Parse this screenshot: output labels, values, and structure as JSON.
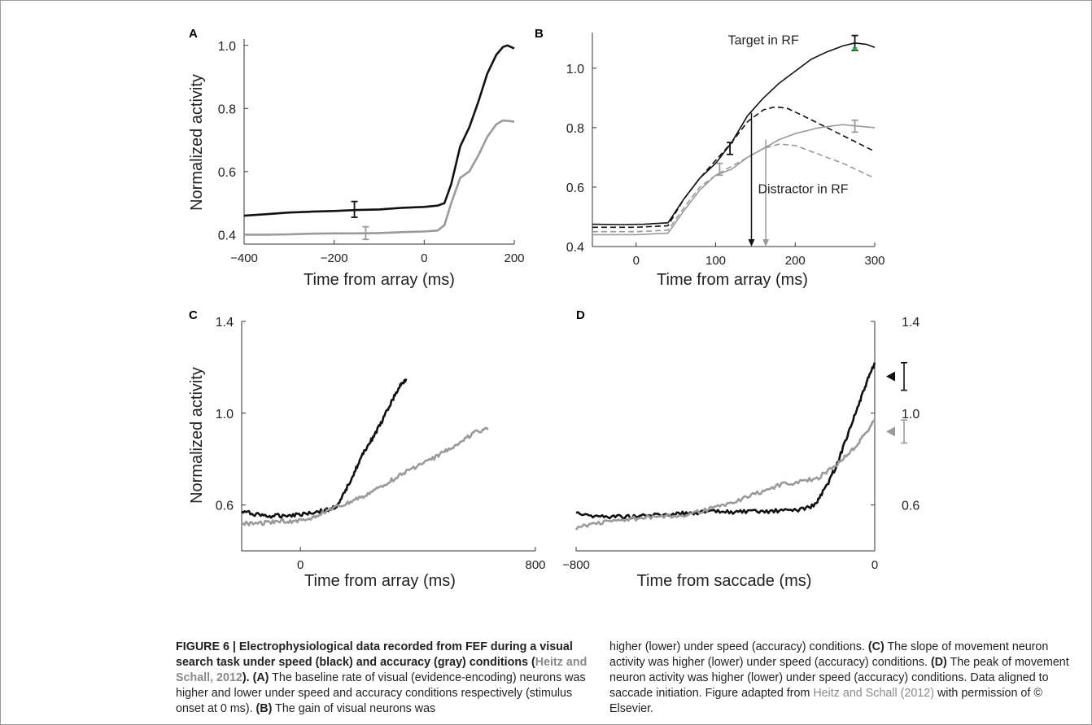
{
  "figure": {
    "caption_left": [
      {
        "text": "FIGURE 6 | Electrophysiological data recorded from FEF during a visual search task under speed (black) and accuracy (gray) conditions (",
        "style": "bold"
      },
      {
        "text": "Heitz and Schall, 2012",
        "style": "bold-ref"
      },
      {
        "text": "). ",
        "style": "bold"
      },
      {
        "text": "(A)",
        "style": "bold"
      },
      {
        "text": " The baseline rate of visual (evidence-encoding) neurons was higher and lower under speed and accuracy conditions respectively (stimulus onset at 0 ms). ",
        "style": "normal"
      },
      {
        "text": "(B)",
        "style": "bold"
      },
      {
        "text": " The gain of visual neurons was",
        "style": "normal"
      }
    ],
    "caption_right": [
      {
        "text": "higher (lower) under speed (accuracy) conditions. ",
        "style": "normal"
      },
      {
        "text": "(C)",
        "style": "bold"
      },
      {
        "text": " The slope of movement neuron activity was higher (lower) under speed (accuracy) conditions. ",
        "style": "normal"
      },
      {
        "text": "(D)",
        "style": "bold"
      },
      {
        "text": " The peak of movement neuron activity was higher (lower) under speed (accuracy) conditions. Data aligned to saccade initiation. Figure adapted from ",
        "style": "normal"
      },
      {
        "text": "Heitz and Schall (2012)",
        "style": "ref"
      },
      {
        "text": " with permission of © Elsevier.",
        "style": "normal"
      }
    ]
  },
  "colors": {
    "speed": "#111111",
    "accuracy": "#9a9a9a",
    "marker_green": "#2aa84a"
  },
  "chart_data": [
    {
      "panel": "A",
      "type": "line",
      "xlabel": "Time from array (ms)",
      "ylabel": "Normalized activity",
      "xlim": [
        -400,
        200
      ],
      "ylim": [
        0.37,
        1.02
      ],
      "xticks": [
        -400,
        -200,
        0,
        200
      ],
      "yticks": [
        0.4,
        0.6,
        0.8,
        1.0
      ],
      "series": [
        {
          "color": "#111111",
          "dashed": false,
          "x": [
            -400,
            -350,
            -300,
            -250,
            -200,
            -150,
            -100,
            -50,
            0,
            30,
            45,
            60,
            80,
            100,
            120,
            140,
            160,
            175,
            185,
            200
          ],
          "y": [
            0.46,
            0.465,
            0.47,
            0.473,
            0.475,
            0.478,
            0.48,
            0.485,
            0.488,
            0.492,
            0.5,
            0.56,
            0.68,
            0.74,
            0.82,
            0.91,
            0.97,
            0.995,
            1.0,
            0.99
          ]
        },
        {
          "color": "#9a9a9a",
          "dashed": false,
          "x": [
            -400,
            -350,
            -300,
            -250,
            -200,
            -150,
            -100,
            -50,
            0,
            30,
            45,
            60,
            80,
            100,
            120,
            140,
            160,
            175,
            190,
            200
          ],
          "y": [
            0.4,
            0.4,
            0.401,
            0.403,
            0.404,
            0.404,
            0.405,
            0.408,
            0.41,
            0.413,
            0.43,
            0.5,
            0.58,
            0.6,
            0.65,
            0.71,
            0.75,
            0.762,
            0.76,
            0.758
          ]
        }
      ],
      "error_bars": [
        {
          "x": -155,
          "y": 0.48,
          "err": 0.025,
          "color": "#111111"
        },
        {
          "x": -130,
          "y": 0.405,
          "err": 0.02,
          "color": "#9a9a9a"
        }
      ]
    },
    {
      "panel": "B",
      "type": "line",
      "xlabel": "Time from array (ms)",
      "ylabel": "",
      "xlim": [
        -55,
        300
      ],
      "ylim": [
        0.4,
        1.12
      ],
      "xticks": [
        0,
        100,
        200,
        300
      ],
      "yticks": [
        0.4,
        0.6,
        0.8,
        1.0
      ],
      "series": [
        {
          "color": "#111111",
          "dashed": false,
          "x": [
            -55,
            -20,
            10,
            40,
            60,
            80,
            100,
            120,
            140,
            160,
            180,
            200,
            220,
            240,
            260,
            275,
            290,
            300
          ],
          "y": [
            0.475,
            0.474,
            0.475,
            0.48,
            0.56,
            0.63,
            0.68,
            0.75,
            0.84,
            0.9,
            0.95,
            0.99,
            1.03,
            1.055,
            1.075,
            1.085,
            1.08,
            1.07
          ]
        },
        {
          "color": "#111111",
          "dashed": true,
          "x": [
            -55,
            0,
            40,
            60,
            80,
            100,
            120,
            140,
            160,
            175,
            190,
            210,
            240,
            270,
            300
          ],
          "y": [
            0.465,
            0.465,
            0.47,
            0.56,
            0.63,
            0.69,
            0.75,
            0.82,
            0.86,
            0.87,
            0.865,
            0.84,
            0.8,
            0.76,
            0.72
          ]
        },
        {
          "color": "#9a9a9a",
          "dashed": false,
          "x": [
            -55,
            0,
            40,
            60,
            80,
            100,
            120,
            140,
            160,
            180,
            200,
            230,
            260,
            280,
            300
          ],
          "y": [
            0.44,
            0.44,
            0.445,
            0.52,
            0.59,
            0.64,
            0.66,
            0.7,
            0.73,
            0.76,
            0.78,
            0.8,
            0.81,
            0.805,
            0.8
          ]
        },
        {
          "color": "#9a9a9a",
          "dashed": true,
          "x": [
            -55,
            0,
            40,
            60,
            80,
            100,
            120,
            140,
            160,
            180,
            200,
            230,
            260,
            300
          ],
          "y": [
            0.45,
            0.45,
            0.455,
            0.53,
            0.6,
            0.64,
            0.67,
            0.7,
            0.73,
            0.745,
            0.74,
            0.71,
            0.68,
            0.63
          ]
        }
      ],
      "error_bars": [
        {
          "x": 118,
          "y": 0.73,
          "err": 0.02,
          "color": "#111111"
        },
        {
          "x": 105,
          "y": 0.66,
          "err": 0.02,
          "color": "#9a9a9a"
        },
        {
          "x": 275,
          "y": 1.085,
          "err": 0.025,
          "color": "#111111"
        },
        {
          "x": 275,
          "y": 0.805,
          "err": 0.02,
          "color": "#9a9a9a"
        }
      ],
      "markers": [
        {
          "x": 275,
          "y": 1.065,
          "color": "#2aa84a"
        }
      ],
      "arrows": [
        {
          "x": 145,
          "y_from": 0.85,
          "y_to": 0.4,
          "color": "#111111"
        },
        {
          "x": 163,
          "y_from": 0.76,
          "y_to": 0.4,
          "color": "#9a9a9a"
        }
      ],
      "annotations": [
        {
          "text": "Target in RF",
          "x": 160,
          "y": 1.08
        },
        {
          "text": "Distractor in RF",
          "x": 210,
          "y": 0.58
        }
      ]
    },
    {
      "panel": "C",
      "type": "line",
      "xlabel": "Time from array (ms)",
      "ylabel": "Normalized activity",
      "xlim": [
        -200,
        800
      ],
      "ylim": [
        0.4,
        1.4
      ],
      "xticks": [
        0,
        800
      ],
      "yticks": [
        0.6,
        1.0,
        1.4
      ],
      "series": [
        {
          "color": "#111111",
          "dashed": false,
          "x": [
            -200,
            -150,
            -100,
            -50,
            0,
            50,
            100,
            130,
            160,
            190,
            220,
            250,
            280,
            310,
            340,
            360
          ],
          "y": [
            0.57,
            0.56,
            0.55,
            0.555,
            0.56,
            0.57,
            0.58,
            0.6,
            0.68,
            0.76,
            0.84,
            0.9,
            0.97,
            1.05,
            1.12,
            1.15
          ]
        },
        {
          "color": "#9a9a9a",
          "dashed": false,
          "x": [
            -200,
            -150,
            -100,
            -50,
            0,
            50,
            100,
            150,
            200,
            250,
            300,
            350,
            400,
            450,
            500,
            550,
            600,
            640
          ],
          "y": [
            0.52,
            0.52,
            0.525,
            0.53,
            0.53,
            0.55,
            0.58,
            0.6,
            0.63,
            0.66,
            0.7,
            0.74,
            0.77,
            0.8,
            0.84,
            0.88,
            0.92,
            0.93
          ]
        }
      ]
    },
    {
      "panel": "D",
      "type": "line",
      "xlabel": "Time from saccade (ms)",
      "ylabel": "",
      "xlim": [
        -800,
        0
      ],
      "ylim": [
        0.4,
        1.4
      ],
      "xticks": [
        -800,
        0
      ],
      "yticks": [
        0.6,
        1.0,
        1.4
      ],
      "series": [
        {
          "color": "#111111",
          "dashed": false,
          "x": [
            -800,
            -750,
            -700,
            -650,
            -600,
            -550,
            -500,
            -450,
            -400,
            -350,
            -300,
            -250,
            -200,
            -160,
            -130,
            -100,
            -70,
            -40,
            -20,
            0
          ],
          "y": [
            0.57,
            0.55,
            0.55,
            0.55,
            0.555,
            0.56,
            0.565,
            0.57,
            0.57,
            0.57,
            0.57,
            0.575,
            0.58,
            0.6,
            0.68,
            0.78,
            0.92,
            1.05,
            1.14,
            1.22
          ]
        },
        {
          "color": "#9a9a9a",
          "dashed": false,
          "x": [
            -800,
            -750,
            -700,
            -650,
            -600,
            -550,
            -500,
            -450,
            -400,
            -350,
            -300,
            -250,
            -200,
            -150,
            -100,
            -60,
            -30,
            0
          ],
          "y": [
            0.5,
            0.52,
            0.53,
            0.54,
            0.545,
            0.55,
            0.56,
            0.58,
            0.6,
            0.63,
            0.66,
            0.69,
            0.7,
            0.72,
            0.78,
            0.84,
            0.9,
            0.97
          ]
        }
      ],
      "right_markers": [
        {
          "y": 1.16,
          "err": 0.06,
          "color": "#111111"
        },
        {
          "y": 0.92,
          "err": 0.05,
          "color": "#9a9a9a"
        }
      ]
    }
  ]
}
